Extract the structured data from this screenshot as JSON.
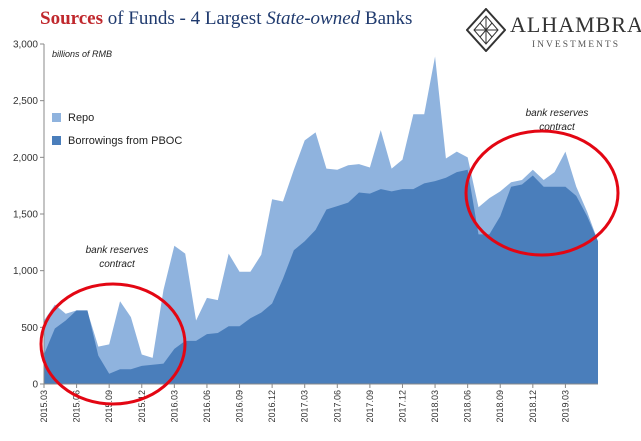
{
  "title": {
    "part1": "Sources",
    "part2": " of Funds - 4 Largest ",
    "part3": "State-owned",
    "part4": " Banks"
  },
  "logo": {
    "brand": "ALHAMBRA",
    "sub": "INVESTMENTS"
  },
  "chart_data": {
    "type": "area",
    "unit_label": "billions of RMB",
    "ylim": [
      0,
      3000
    ],
    "yticks": [
      "0",
      "500",
      "1,000",
      "1,500",
      "2,000",
      "2,500",
      "3,000"
    ],
    "xtick_labels": [
      "2015.03",
      "2015.06",
      "2015.09",
      "2015.12",
      "2016.03",
      "2016.06",
      "2016.09",
      "2016.12",
      "2017.03",
      "2017.06",
      "2017.09",
      "2017.12",
      "2018.03",
      "2018.06",
      "2018.09",
      "2018.12",
      "2019.03"
    ],
    "series": [
      {
        "name": "Repo",
        "color": "#8fb3de",
        "values": [
          560,
          700,
          620,
          650,
          640,
          330,
          350,
          730,
          590,
          260,
          230,
          830,
          1220,
          1150,
          560,
          760,
          740,
          1150,
          990,
          990,
          1140,
          1630,
          1610,
          1890,
          2150,
          2220,
          1900,
          1890,
          1930,
          1940,
          1910,
          2240,
          1900,
          1980,
          2380,
          2380,
          2890,
          1990,
          2050,
          2000,
          1560,
          1640,
          1700,
          1780,
          1800,
          1890,
          1800,
          1870,
          2050,
          1740,
          1520,
          1260
        ]
      },
      {
        "name": "Borrowings from PBOC",
        "color": "#4a7ebb",
        "values": [
          260,
          490,
          560,
          650,
          650,
          250,
          90,
          130,
          130,
          160,
          170,
          180,
          310,
          380,
          380,
          440,
          450,
          510,
          510,
          580,
          630,
          710,
          930,
          1180,
          1260,
          1360,
          1540,
          1570,
          1600,
          1690,
          1680,
          1720,
          1700,
          1720,
          1720,
          1770,
          1790,
          1820,
          1870,
          1890,
          1320,
          1320,
          1480,
          1740,
          1760,
          1840,
          1740,
          1740,
          1740,
          1660,
          1480,
          1260
        ]
      }
    ],
    "annotations": [
      {
        "line1": "bank reserves",
        "line2": "contract"
      },
      {
        "line1": "bank reserves",
        "line2": "contract"
      }
    ]
  }
}
